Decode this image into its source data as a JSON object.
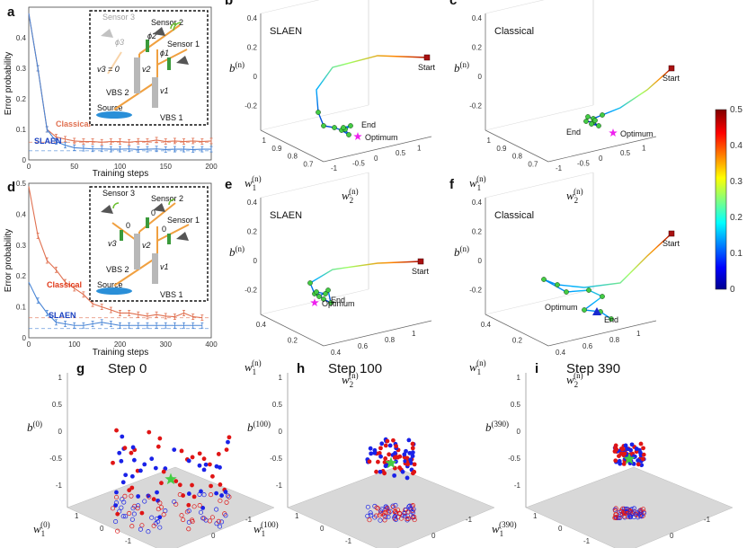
{
  "colors": {
    "classical": "#e07050",
    "slaen": "#4a86d6",
    "start": "#aa1111",
    "optimum": "#ee22ee",
    "green_marker": "#44cc44",
    "red_pts": "#e01515",
    "blue_pts": "#1a22e8",
    "plane": "#d8d8d8"
  },
  "panel_a": {
    "panel_label": "a",
    "ylabel": "Error probability",
    "xlabel": "Training steps",
    "xticks": [
      "0",
      "50",
      "100",
      "150",
      "200"
    ],
    "yticks": [
      "0",
      "0.1",
      "0.2",
      "0.3",
      "0.4"
    ],
    "classical_label": "Classical",
    "slaen_label": "SLAEN",
    "inset": {
      "sensor3": "Sensor 3",
      "sensor2": "Sensor 2",
      "sensor1": "Sensor 1",
      "phi3": "ϕ3",
      "phi2": "ϕ2",
      "phi1": "ϕ1",
      "v3": "v3 = 0",
      "v2": "v2",
      "v1": "v1",
      "vbs2": "VBS 2",
      "vbs1": "VBS 1",
      "source": "Source"
    }
  },
  "panel_d": {
    "panel_label": "d",
    "ylabel": "Error probability",
    "xlabel": "Training steps",
    "xticks": [
      "0",
      "100",
      "200",
      "300",
      "400"
    ],
    "yticks": [
      "0",
      "0.1",
      "0.2",
      "0.3",
      "0.4",
      "0.5"
    ],
    "classical_label": "Classical",
    "slaen_label": "SLAEN",
    "inset": {
      "sensor3": "Sensor 3",
      "sensor2": "Sensor 2",
      "sensor1": "Sensor 1",
      "zero3": "0",
      "zero2": "0",
      "zero1": "0",
      "v3": "v3",
      "v2": "v2",
      "v1": "v1",
      "vbs2": "VBS 2",
      "vbs1": "VBS 1",
      "source": "Source"
    }
  },
  "panel_b": {
    "panel_label": "b",
    "title": "SLAEN",
    "start": "Start",
    "end": "End",
    "optimum": "Optimum",
    "b_label": "b",
    "b_sup": "(n)",
    "w1_label": "w",
    "w1_sub": "1",
    "w1_sup": "(n)",
    "w2_label": "w",
    "w2_sub": "2",
    "w2_sup": "(n)",
    "zticks": [
      "0.4",
      "0.2",
      "0",
      "-0.2"
    ],
    "w1ticks": [
      "1",
      "0.9",
      "0.8",
      "0.7"
    ],
    "w2ticks": [
      "-1",
      "-0.5",
      "0",
      "0.5",
      "1"
    ]
  },
  "panel_c": {
    "panel_label": "c",
    "title": "Classical",
    "start": "Start",
    "end": "End",
    "optimum": "Optimum",
    "b_label": "b",
    "b_sup": "(n)",
    "w1_label": "w",
    "w1_sub": "1",
    "w1_sup": "(n)",
    "w2_label": "w",
    "w2_sub": "2",
    "w2_sup": "(n)",
    "zticks": [
      "0.4",
      "0.2",
      "0",
      "-0.2"
    ],
    "w1ticks": [
      "1",
      "0.9",
      "0.8",
      "0.7"
    ],
    "w2ticks": [
      "-1",
      "-0.5",
      "0",
      "0.5",
      "1"
    ]
  },
  "panel_e": {
    "panel_label": "e",
    "title": "SLAEN",
    "start": "Start",
    "end": "End",
    "optimum": "Optimum",
    "b_label": "b",
    "b_sup": "(n)",
    "w1_label": "w",
    "w1_sub": "1",
    "w1_sup": "(n)",
    "w2_label": "w",
    "w2_sub": "2",
    "w2_sup": "(n)",
    "zticks": [
      "0.4",
      "0.2",
      "0",
      "-0.2"
    ],
    "w1ticks": [
      "0.4",
      "0.2"
    ],
    "w2ticks": [
      "0.4",
      "0.6",
      "0.8",
      "1"
    ]
  },
  "panel_f": {
    "panel_label": "f",
    "title": "Classical",
    "start": "Start",
    "end": "End",
    "optimum": "Optimum",
    "b_label": "b",
    "b_sup": "(n)",
    "w1_label": "w",
    "w1_sub": "1",
    "w1_sup": "(n)",
    "w2_label": "w",
    "w2_sub": "2",
    "w2_sup": "(n)",
    "zticks": [
      "0.4",
      "0.2",
      "0",
      "-0.2"
    ],
    "w1ticks": [
      "0.4",
      "0.2"
    ],
    "w2ticks": [
      "0.4",
      "0.6",
      "0.8",
      "1"
    ]
  },
  "colorbar": {
    "ticks": [
      "0.5",
      "0.4",
      "0.3",
      "0.2",
      "0.1",
      "0"
    ]
  },
  "panel_g": {
    "panel_label": "g",
    "title": "Step 0",
    "b_label": "b",
    "b_sup": "(0)",
    "w1_label": "w",
    "w1_sub": "1",
    "w1_sup": "(0)",
    "w2_label": "w",
    "w2_sub": "2",
    "w2_sup": "(0)",
    "zticks": [
      "1",
      "0.5",
      "0",
      "-0.5",
      "-1"
    ],
    "w1ticks": [
      "1",
      "0",
      "-1"
    ],
    "w2ticks": [
      "1",
      "0",
      "-1"
    ]
  },
  "panel_h": {
    "panel_label": "h",
    "title": "Step 100",
    "b_label": "b",
    "b_sup": "(100)",
    "w1_label": "w",
    "w1_sub": "1",
    "w1_sup": "(100)",
    "w2_label": "w",
    "w2_sub": "2",
    "w2_sup": "(100)",
    "zticks": [
      "1",
      "0.5",
      "0",
      "-0.5",
      "-1"
    ],
    "w1ticks": [
      "1",
      "0",
      "-1"
    ],
    "w2ticks": [
      "1",
      "0",
      "-1"
    ]
  },
  "panel_i": {
    "panel_label": "i",
    "title": "Step 390",
    "b_label": "b",
    "b_sup": "(390)",
    "w1_label": "w",
    "w1_sub": "1",
    "w1_sup": "(390)",
    "w2_label": "w",
    "w2_sub": "2",
    "w2_sup": "(390)",
    "zticks": [
      "1",
      "0.5",
      "0",
      "-0.5",
      "-1"
    ],
    "w1ticks": [
      "1",
      "0",
      "-1"
    ],
    "w2ticks": [
      "1",
      "0",
      "-1"
    ]
  },
  "chart_data": [
    {
      "type": "line",
      "id": "a",
      "title": "",
      "xlabel": "Training steps",
      "ylabel": "Error probability",
      "xlim": [
        0,
        200
      ],
      "ylim": [
        0,
        0.5
      ],
      "series": [
        {
          "name": "Classical",
          "x": [
            0,
            10,
            20,
            30,
            40,
            50,
            60,
            70,
            80,
            90,
            100,
            110,
            120,
            130,
            140,
            150,
            160,
            170,
            180,
            190,
            200
          ],
          "values": [
            0.48,
            0.3,
            0.1,
            0.075,
            0.068,
            0.062,
            0.06,
            0.06,
            0.058,
            0.06,
            0.06,
            0.058,
            0.061,
            0.06,
            0.065,
            0.06,
            0.062,
            0.06,
            0.062,
            0.06,
            0.062
          ]
        },
        {
          "name": "SLAEN",
          "x": [
            0,
            10,
            20,
            30,
            40,
            50,
            60,
            70,
            80,
            90,
            100,
            110,
            120,
            130,
            140,
            150,
            160,
            170,
            180,
            190,
            200
          ],
          "values": [
            0.48,
            0.3,
            0.1,
            0.06,
            0.048,
            0.04,
            0.038,
            0.036,
            0.036,
            0.035,
            0.035,
            0.036,
            0.034,
            0.035,
            0.036,
            0.034,
            0.035,
            0.035,
            0.034,
            0.035,
            0.035
          ]
        }
      ],
      "reference_lines": [
        0.058,
        0.03
      ]
    },
    {
      "type": "line",
      "id": "d",
      "title": "",
      "xlabel": "Training steps",
      "ylabel": "Error probability",
      "xlim": [
        0,
        400
      ],
      "ylim": [
        0,
        0.5
      ],
      "series": [
        {
          "name": "Classical",
          "x": [
            0,
            20,
            40,
            60,
            80,
            100,
            120,
            140,
            160,
            180,
            200,
            220,
            240,
            260,
            280,
            300,
            320,
            340,
            360,
            380
          ],
          "values": [
            0.49,
            0.33,
            0.25,
            0.22,
            0.18,
            0.16,
            0.14,
            0.11,
            0.1,
            0.09,
            0.08,
            0.08,
            0.075,
            0.07,
            0.075,
            0.07,
            0.068,
            0.08,
            0.068,
            0.065
          ]
        },
        {
          "name": "SLAEN",
          "x": [
            0,
            20,
            40,
            60,
            80,
            100,
            120,
            140,
            160,
            180,
            200,
            220,
            240,
            260,
            280,
            300,
            320,
            340,
            360,
            380
          ],
          "values": [
            0.18,
            0.12,
            0.08,
            0.05,
            0.045,
            0.04,
            0.04,
            0.045,
            0.05,
            0.045,
            0.04,
            0.04,
            0.04,
            0.04,
            0.04,
            0.04,
            0.04,
            0.04,
            0.04,
            0.04
          ]
        }
      ],
      "reference_lines": [
        0.065,
        0.03
      ]
    }
  ]
}
